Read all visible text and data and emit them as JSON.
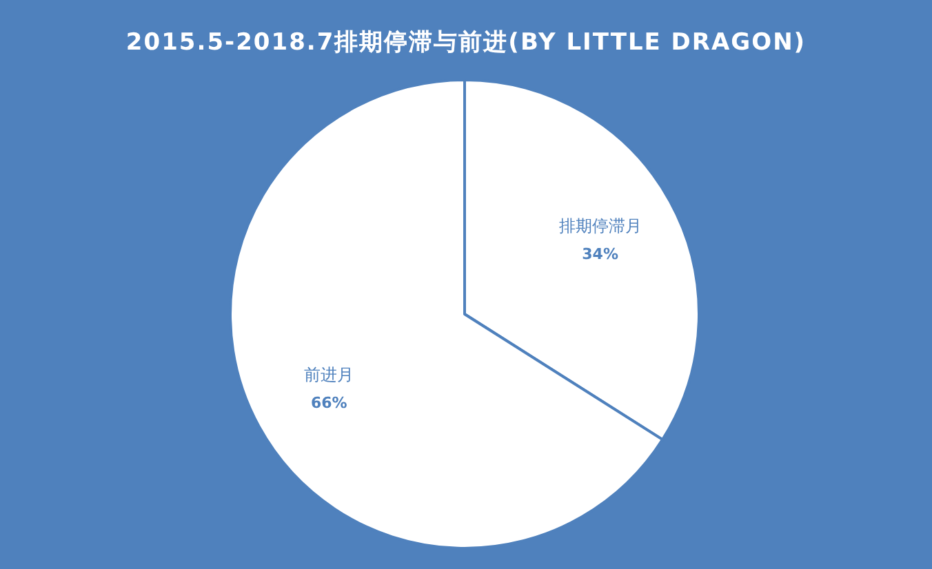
{
  "chart_data": {
    "type": "pie",
    "title": "2015.5-2018.7排期停滞与前进(BY LITTLE DRAGON)",
    "categories": [
      "排期停滞月",
      "前进月"
    ],
    "values": [
      34,
      66
    ],
    "colors": [
      "#ffffff",
      "#ffffff"
    ],
    "value_labels": [
      "34%",
      "66%"
    ]
  }
}
